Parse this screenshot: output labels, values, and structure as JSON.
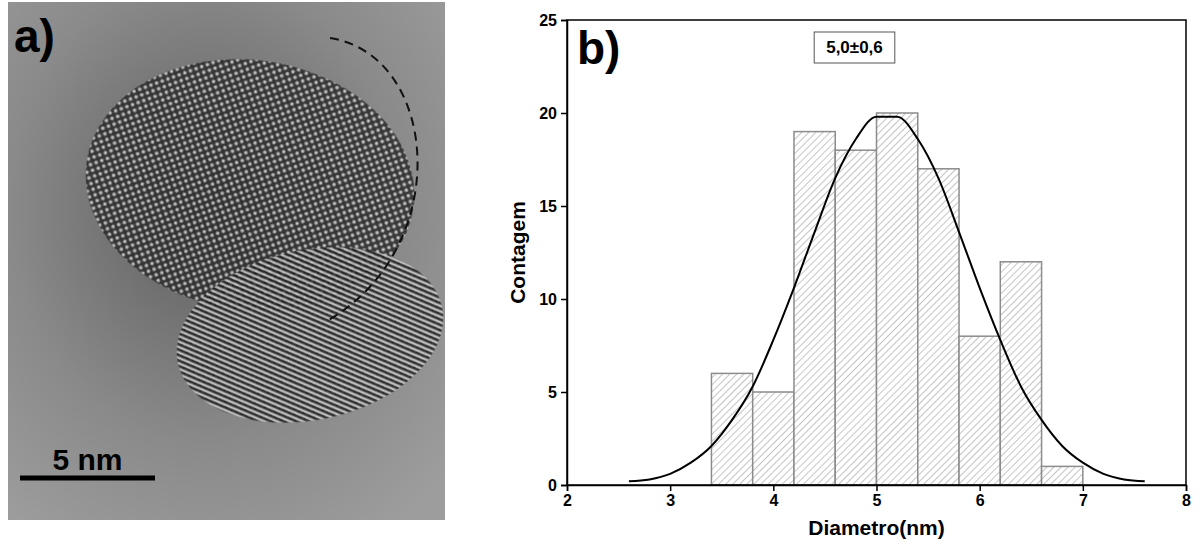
{
  "chart_data": [
    {
      "type": "image",
      "title": "a)",
      "scale_bar": {
        "value": 5,
        "label": "5 nm"
      }
    },
    {
      "type": "histogram",
      "title": "b)",
      "annotations": [
        "5,0±0,6"
      ],
      "x_label": "Diametro(nm)",
      "y_label": "Contagem",
      "bins": [
        3.4,
        3.8,
        4.2,
        4.6,
        5.0,
        5.4,
        5.8,
        6.2,
        6.6,
        7.0
      ],
      "values": [
        6,
        5,
        19,
        18,
        20,
        17,
        8,
        12,
        1
      ],
      "color": "#8c8c8c",
      "fit": {
        "color": "#000000",
        "x": [
          2.6,
          2.8,
          3.0,
          3.2,
          3.4,
          3.6,
          3.8,
          4.0,
          4.2,
          4.4,
          4.6,
          4.8,
          5.0,
          5.2,
          5.4,
          5.6,
          5.8,
          6.0,
          6.2,
          6.4,
          6.6,
          6.8,
          7.0,
          7.2,
          7.4,
          7.6
        ],
        "values": [
          0.2,
          0.3,
          0.6,
          1.2,
          2.1,
          3.5,
          5.3,
          7.8,
          10.6,
          13.6,
          16.5,
          18.6,
          19.8,
          19.8,
          18.6,
          16.5,
          13.6,
          10.6,
          7.8,
          5.3,
          3.5,
          2.1,
          1.2,
          0.6,
          0.3,
          0.2
        ]
      },
      "xlim": [
        2,
        8
      ],
      "xticks": [
        2,
        3,
        4,
        5,
        6,
        7,
        8
      ],
      "ylim": [
        0,
        25
      ],
      "yticks": [
        0,
        5,
        10,
        15,
        20,
        25
      ]
    }
  ]
}
